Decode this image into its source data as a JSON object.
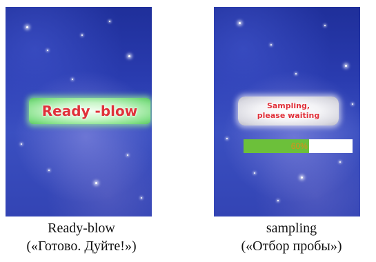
{
  "screens": {
    "ready": {
      "status_text": "Ready -blow",
      "caption_line1": "Ready-blow",
      "caption_line2": "(«Готово. Дуйте!»)"
    },
    "sampling": {
      "status_line1": "Sampling,",
      "status_line2": "please waiting",
      "progress": {
        "value_percent": 60,
        "label": "60%"
      },
      "caption_line1": "sampling",
      "caption_line2": "(«Отбор пробы»)"
    }
  },
  "colors": {
    "status_text": "#e0303a",
    "ready_pill": "#84e089",
    "sampling_pill": "#d8d8e0",
    "progress_fill": "#6cc03a",
    "progress_label": "#e08a1a",
    "background": "#2a3cb0"
  }
}
